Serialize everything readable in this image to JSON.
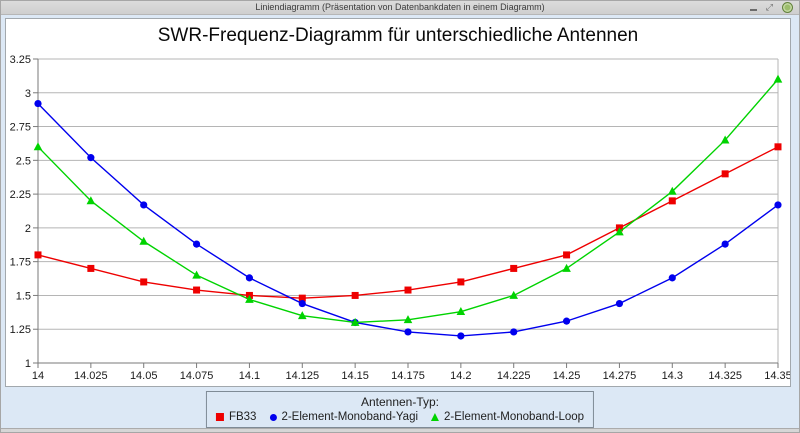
{
  "window": {
    "title": "Liniendiagramm (Präsentation von Datenbankdaten in einem Diagramm)",
    "buttons": {
      "minimize": "minimize-icon",
      "maximize": "maximize-icon",
      "close": "close-icon"
    }
  },
  "colors": {
    "window_background": "#dce8f5",
    "chart_background": "#ffffff",
    "gridline": "#b5b5b5",
    "axis": "#7a7a7a",
    "close_button": "#9cbd6c"
  },
  "chart_data": {
    "type": "line",
    "title": "SWR-Frequenz-Diagramm für unterschiedliche Antennen",
    "xlabel": "",
    "ylabel": "",
    "x": [
      14,
      14.025,
      14.05,
      14.075,
      14.1,
      14.125,
      14.15,
      14.175,
      14.2,
      14.225,
      14.25,
      14.275,
      14.3,
      14.325,
      14.35
    ],
    "x_tick_labels": [
      "14",
      "14.025",
      "14.05",
      "14.075",
      "14.1",
      "14.125",
      "14.15",
      "14.175",
      "14.2",
      "14.225",
      "14.25",
      "14.275",
      "14.3",
      "14.325",
      "14.35"
    ],
    "xlim": [
      14,
      14.35
    ],
    "ylim": [
      1,
      3.25
    ],
    "y_ticks": [
      1,
      1.25,
      1.5,
      1.75,
      2,
      2.25,
      2.5,
      2.75,
      3,
      3.25
    ],
    "y_tick_labels": [
      "1",
      "1.25",
      "1.5",
      "1.75",
      "2",
      "2.25",
      "2.5",
      "2.75",
      "3",
      "3.25"
    ],
    "grid": true,
    "legend_position": "bottom",
    "legend_title": "Antennen-Typ:",
    "series": [
      {
        "name": "FB33",
        "marker": "square",
        "color": "#ee0000",
        "values": [
          1.8,
          1.7,
          1.6,
          1.54,
          1.5,
          1.48,
          1.5,
          1.54,
          1.6,
          1.7,
          1.8,
          2.0,
          2.2,
          2.4,
          2.6
        ]
      },
      {
        "name": "2-Element-Monoband-Yagi",
        "marker": "circle",
        "color": "#0000ee",
        "values": [
          2.92,
          2.52,
          2.17,
          1.88,
          1.63,
          1.44,
          1.3,
          1.23,
          1.2,
          1.23,
          1.31,
          1.44,
          1.63,
          1.88,
          2.17
        ]
      },
      {
        "name": "2-Element-Monoband-Loop",
        "marker": "triangle",
        "color": "#00d300",
        "values": [
          2.6,
          2.2,
          1.9,
          1.65,
          1.47,
          1.35,
          1.3,
          1.32,
          1.38,
          1.5,
          1.7,
          1.97,
          2.27,
          2.65,
          3.1
        ]
      }
    ]
  }
}
